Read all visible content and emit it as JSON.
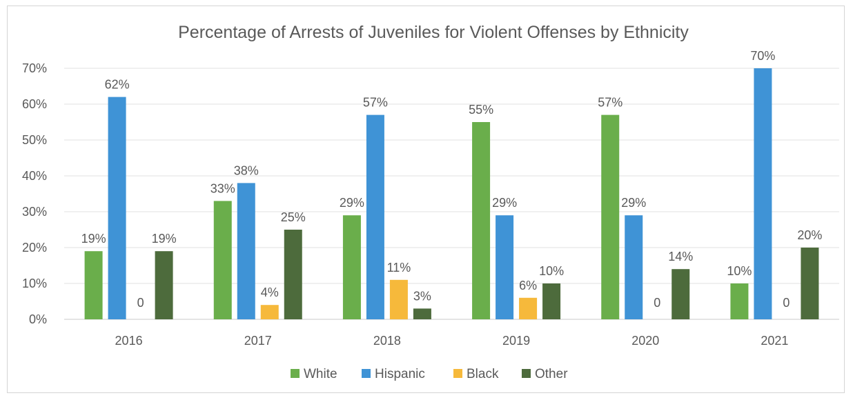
{
  "chart_data": {
    "type": "bar",
    "title": "Percentage of Arrests of Juveniles for Violent Offenses by Ethnicity",
    "xlabel": "",
    "ylabel": "",
    "categories": [
      "2016",
      "2017",
      "2018",
      "2019",
      "2020",
      "2021"
    ],
    "ylim": [
      0,
      70
    ],
    "y_ticks": [
      {
        "value": 0,
        "label": "0%"
      },
      {
        "value": 10,
        "label": "10%"
      },
      {
        "value": 20,
        "label": "20%"
      },
      {
        "value": 30,
        "label": "30%"
      },
      {
        "value": 40,
        "label": "40%"
      },
      {
        "value": 50,
        "label": "50%"
      },
      {
        "value": 60,
        "label": "60%"
      },
      {
        "value": 70,
        "label": "70%"
      }
    ],
    "grid": true,
    "legend_position": "bottom",
    "series": [
      {
        "name": "White",
        "color": "#6aae4b",
        "values": [
          19,
          33,
          29,
          55,
          57,
          10
        ],
        "labels": [
          "19%",
          "33%",
          "29%",
          "55%",
          "57%",
          "10%"
        ]
      },
      {
        "name": "Hispanic",
        "color": "#3f93d6",
        "values": [
          62,
          38,
          57,
          29,
          29,
          70
        ],
        "labels": [
          "62%",
          "38%",
          "57%",
          "29%",
          "29%",
          "70%"
        ]
      },
      {
        "name": "Black",
        "color": "#f6b93b",
        "values": [
          0,
          4,
          11,
          6,
          0,
          0
        ],
        "labels": [
          "0",
          "4%",
          "11%",
          "6%",
          "0",
          "0"
        ]
      },
      {
        "name": "Other",
        "color": "#4d6b3c",
        "values": [
          19,
          25,
          3,
          10,
          14,
          20
        ],
        "labels": [
          "19%",
          "25%",
          "3%",
          "10%",
          "14%",
          "20%"
        ]
      }
    ]
  }
}
